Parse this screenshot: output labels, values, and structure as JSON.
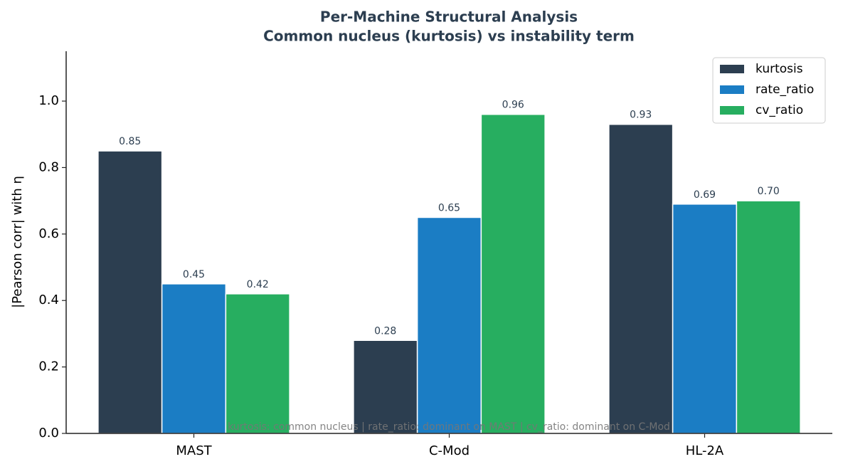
{
  "chart_data": {
    "type": "bar",
    "title": "Per-Machine Structural Analysis",
    "subtitle": "Common nucleus (kurtosis) vs instability term",
    "y_label": "|Pearson corr| with η",
    "annotation": "kurtosis: common nucleus  |  rate_ratio: dominant on MAST  |  cv_ratio: dominant on C-Mod",
    "categories": [
      "MAST",
      "C-Mod",
      "HL-2A"
    ],
    "series": [
      {
        "name": "kurtosis",
        "color": "#2c3e50",
        "values": [
          0.85,
          0.28,
          0.93
        ],
        "value_labels": [
          "0.85",
          "0.28",
          "0.93"
        ]
      },
      {
        "name": "rate_ratio",
        "color": "#1b7dc4",
        "values": [
          0.45,
          0.65,
          0.69
        ],
        "value_labels": [
          "0.45",
          "0.65",
          "0.69"
        ]
      },
      {
        "name": "cv_ratio",
        "color": "#27ae60",
        "values": [
          0.42,
          0.96,
          0.7
        ],
        "value_labels": [
          "0.42",
          "0.96",
          "0.70"
        ]
      }
    ],
    "ylim": [
      0,
      1.15
    ],
    "yticks": [
      {
        "value": 0,
        "label": "0.0"
      },
      0.2,
      0.4,
      0.6,
      0.8,
      {
        "value": 1,
        "label": "1.0"
      }
    ],
    "legend": "upper right"
  }
}
